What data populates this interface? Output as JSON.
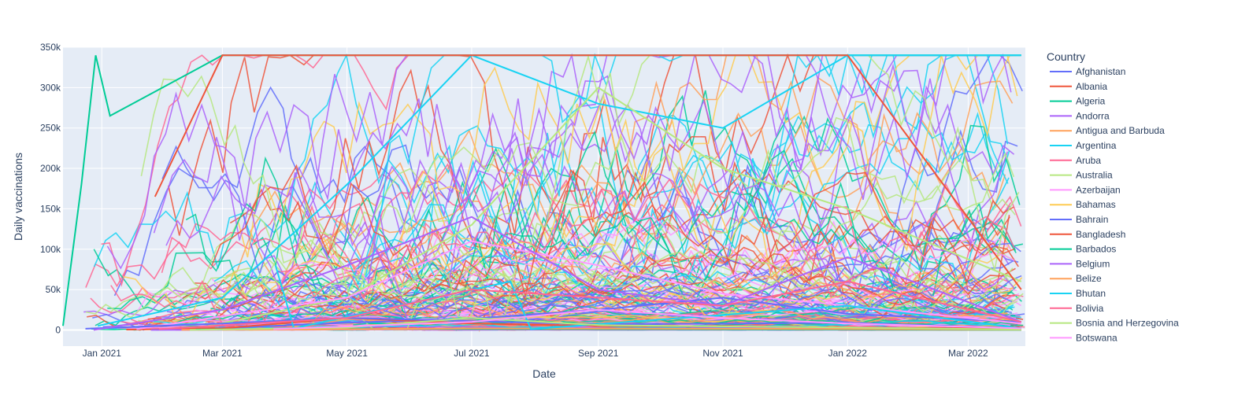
{
  "chart_data": {
    "type": "line",
    "xlabel": "Date",
    "ylabel": "Daily vaccinations",
    "xlim": [
      "2020-12-13",
      "2022-03-29"
    ],
    "ylim": [
      -20000,
      350000
    ],
    "x_ticks": [
      "2021-01-01",
      "2021-03-01",
      "2021-05-01",
      "2021-07-01",
      "2021-09-01",
      "2021-11-01",
      "2022-01-01",
      "2022-03-01"
    ],
    "x_tick_labels": [
      "Jan 2021",
      "Mar 2021",
      "May 2021",
      "Jul 2021",
      "Sep 2021",
      "Nov 2021",
      "Jan 2022",
      "Mar 2022"
    ],
    "y_ticks": [
      0,
      50000,
      100000,
      150000,
      200000,
      250000,
      300000,
      350000
    ],
    "y_tick_labels": [
      "0",
      "50k",
      "100k",
      "150k",
      "200k",
      "250k",
      "300k",
      "350k"
    ],
    "grid": true,
    "legend": {
      "title": "Country",
      "placement": "right"
    },
    "series": [
      {
        "name": "Afghanistan",
        "color": "#636efa",
        "x": [
          "2021-02-22",
          "2021-05-01",
          "2021-07-01",
          "2021-09-01",
          "2021-11-01",
          "2022-01-01",
          "2022-03-27"
        ],
        "values": [
          1500,
          9000,
          14000,
          25000,
          40000,
          20000,
          10000
        ]
      },
      {
        "name": "Albania",
        "color": "#EF553B",
        "x": [
          "2021-01-13",
          "2021-03-01",
          "2021-05-01",
          "2021-07-01",
          "2021-09-01",
          "2021-11-01",
          "2022-01-01",
          "2022-03-27"
        ],
        "values": [
          400,
          2000,
          15000,
          8000,
          5000,
          4500,
          3000,
          1500
        ]
      },
      {
        "name": "Algeria",
        "color": "#00cc96",
        "x": [
          "2020-12-13",
          "2020-12-22",
          "2020-12-29",
          "2021-01-05",
          "2021-03-01",
          "2021-07-01",
          "2021-11-01",
          "2022-03-27"
        ],
        "values": [
          5000,
          180000,
          340000,
          265000,
          340000,
          340000,
          340000,
          340000
        ]
      },
      {
        "name": "Andorra",
        "color": "#ab63fa",
        "x": [
          "2021-01-25",
          "2021-05-01",
          "2021-09-01",
          "2022-01-01",
          "2022-03-27"
        ],
        "values": [
          100,
          400,
          300,
          200,
          150
        ]
      },
      {
        "name": "Antigua and Barbuda",
        "color": "#FFA15A",
        "x": [
          "2021-02-09",
          "2021-05-01",
          "2021-09-01",
          "2022-01-01",
          "2022-03-27"
        ],
        "values": [
          300,
          1000,
          800,
          400,
          200
        ]
      },
      {
        "name": "Argentina",
        "color": "#19d3f3",
        "x": [
          "2020-12-30",
          "2021-03-01",
          "2021-05-01",
          "2021-07-01",
          "2021-09-01",
          "2021-11-01",
          "2022-01-01",
          "2022-03-27"
        ],
        "values": [
          5000,
          40000,
          180000,
          340000,
          280000,
          250000,
          340000,
          340000
        ]
      },
      {
        "name": "Aruba",
        "color": "#FF6692",
        "x": [
          "2021-02-17",
          "2021-05-01",
          "2021-09-01",
          "2022-01-01",
          "2022-03-27"
        ],
        "values": [
          200,
          1500,
          800,
          600,
          300
        ]
      },
      {
        "name": "Australia",
        "color": "#B6E880",
        "x": [
          "2021-02-22",
          "2021-05-01",
          "2021-07-01",
          "2021-09-01",
          "2021-11-01",
          "2022-01-01",
          "2022-03-27"
        ],
        "values": [
          5000,
          40000,
          130000,
          300000,
          200000,
          150000,
          60000
        ]
      },
      {
        "name": "Azerbaijan",
        "color": "#FF97FF",
        "x": [
          "2021-01-18",
          "2021-05-01",
          "2021-07-01",
          "2021-09-01",
          "2021-11-01",
          "2022-01-01",
          "2022-03-27"
        ],
        "values": [
          1000,
          40000,
          110000,
          80000,
          45000,
          30000,
          8000
        ]
      },
      {
        "name": "Bahamas",
        "color": "#FECB52",
        "x": [
          "2021-03-14",
          "2021-07-01",
          "2021-11-01",
          "2022-03-27"
        ],
        "values": [
          300,
          1500,
          800,
          200
        ]
      },
      {
        "name": "Bahrain",
        "color": "#636efa",
        "x": [
          "2020-12-24",
          "2021-03-01",
          "2021-05-01",
          "2021-09-01",
          "2022-01-01",
          "2022-03-27"
        ],
        "values": [
          1500,
          8000,
          15000,
          7000,
          9000,
          2000
        ]
      },
      {
        "name": "Bangladesh",
        "color": "#EF553B",
        "x": [
          "2021-01-27",
          "2021-03-01",
          "2021-07-01",
          "2021-09-01",
          "2021-11-01",
          "2022-01-01",
          "2022-03-27"
        ],
        "values": [
          165000,
          340000,
          340000,
          340000,
          340000,
          340000,
          50000
        ]
      },
      {
        "name": "Barbados",
        "color": "#00cc96",
        "x": [
          "2021-02-16",
          "2021-05-01",
          "2021-09-01",
          "2022-01-01",
          "2022-03-27"
        ],
        "values": [
          500,
          1500,
          1000,
          400,
          200
        ]
      },
      {
        "name": "Belgium",
        "color": "#ab63fa",
        "x": [
          "2020-12-28",
          "2021-03-01",
          "2021-05-01",
          "2021-07-01",
          "2021-09-01",
          "2021-11-01",
          "2022-01-01",
          "2022-03-27"
        ],
        "values": [
          100,
          25000,
          80000,
          140000,
          50000,
          30000,
          90000,
          10000
        ]
      },
      {
        "name": "Belize",
        "color": "#FFA15A",
        "x": [
          "2021-03-01",
          "2021-07-01",
          "2021-11-01",
          "2022-03-27"
        ],
        "values": [
          200,
          2000,
          1500,
          400
        ]
      },
      {
        "name": "Bhutan",
        "color": "#19d3f3",
        "x": [
          "2021-03-27",
          "2021-04-05",
          "2021-07-20",
          "2021-07-30",
          "2022-01-01",
          "2022-03-27"
        ],
        "values": [
          80000,
          2000,
          60000,
          1000,
          30000,
          2000
        ]
      },
      {
        "name": "Bolivia",
        "color": "#FF6692",
        "x": [
          "2021-01-29",
          "2021-05-01",
          "2021-07-01",
          "2021-09-01",
          "2021-11-01",
          "2022-01-01",
          "2022-03-27"
        ],
        "values": [
          1000,
          15000,
          50000,
          40000,
          30000,
          60000,
          10000
        ]
      },
      {
        "name": "Bosnia and Herzegovina",
        "color": "#B6E880",
        "x": [
          "2021-02-13",
          "2021-05-01",
          "2021-07-01",
          "2021-09-01",
          "2022-01-01",
          "2022-03-27"
        ],
        "values": [
          100,
          3000,
          15000,
          6000,
          3000,
          500
        ]
      },
      {
        "name": "Botswana",
        "color": "#FF97FF",
        "x": [
          "2021-03-26",
          "2021-07-01",
          "2021-09-01",
          "2021-11-01",
          "2022-01-01",
          "2022-03-27"
        ],
        "values": [
          1000,
          10000,
          25000,
          15000,
          8000,
          2000
        ]
      }
    ]
  }
}
